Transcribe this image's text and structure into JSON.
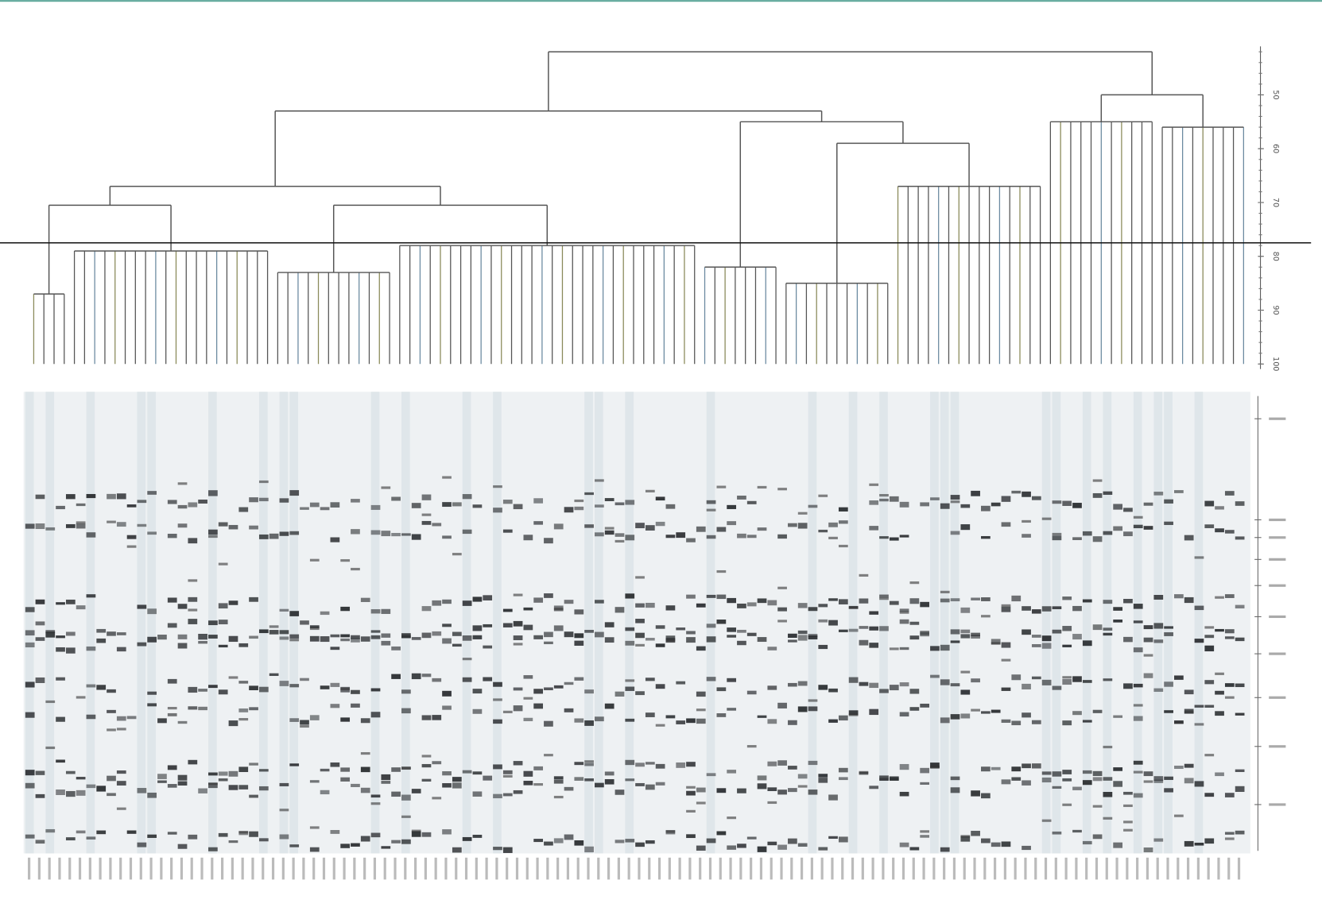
{
  "chart_data": {
    "type": "dendrogram",
    "ylim": [
      100,
      41
    ],
    "yticks": [
      100,
      90,
      80,
      70,
      60,
      50
    ],
    "threshold": 77.5,
    "color": "#555555",
    "tree": {
      "height": 42,
      "children": [
        {
          "height": 53,
          "children": [
            {
              "height": 67,
              "children": [
                {
                  "height": 70.5,
                  "children": [
                    {
                      "height": 87,
                      "leaves": 4
                    },
                    {
                      "height": 79,
                      "leaves": 20
                    }
                  ]
                },
                {
                  "height": 70.5,
                  "children": [
                    {
                      "height": 83,
                      "leaves": 12
                    },
                    {
                      "height": 78,
                      "leaves": 30
                    }
                  ]
                }
              ]
            },
            {
              "height": 55,
              "children": [
                {
                  "height": 82,
                  "leaves": 8
                },
                {
                  "height": 59,
                  "children": [
                    {
                      "height": 85,
                      "leaves": 11
                    },
                    {
                      "height": 67,
                      "leaves": 15
                    }
                  ]
                }
              ]
            }
          ]
        },
        {
          "height": 50,
          "children": [
            {
              "height": 55,
              "leaves": 11
            },
            {
              "height": 56,
              "leaves": 9
            }
          ]
        }
      ]
    }
  }
}
